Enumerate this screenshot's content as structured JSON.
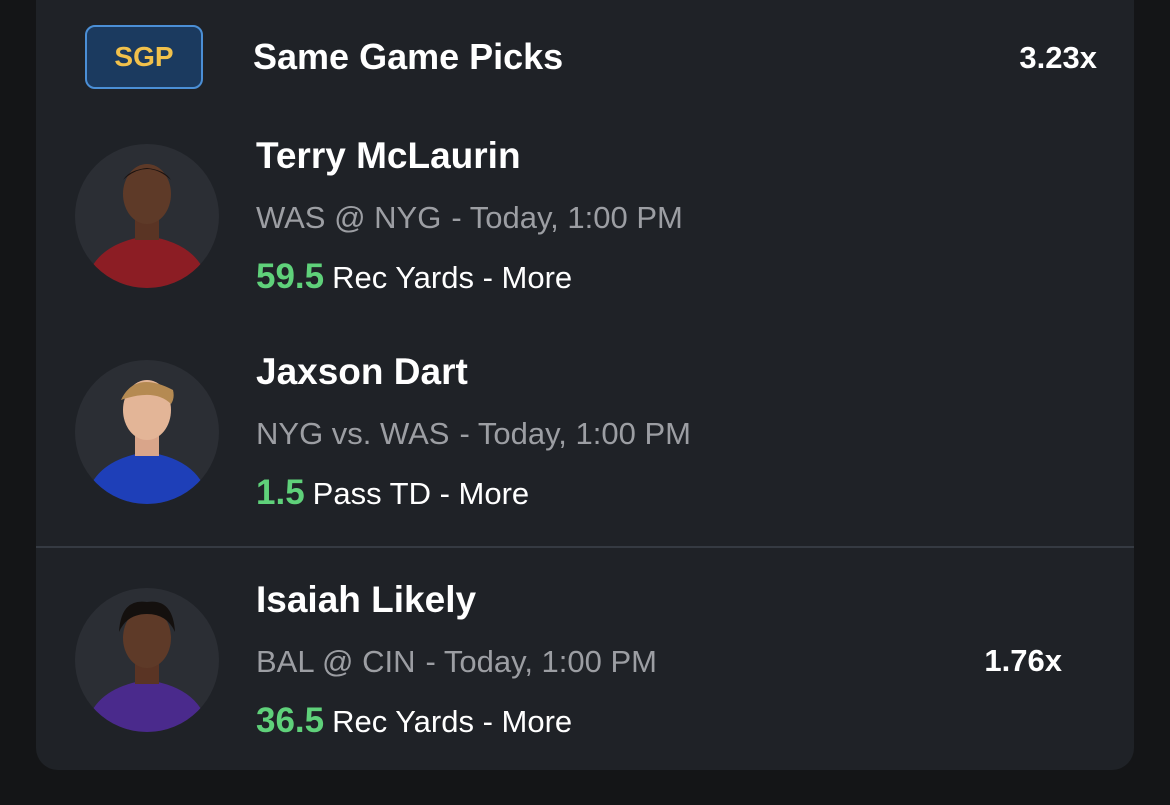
{
  "header": {
    "badge": "SGP",
    "title": "Same Game Picks",
    "multiplier": "3.23x"
  },
  "picks": [
    {
      "name": "Terry McLaurin",
      "matchup": "WAS @ NYG",
      "time": "- Today, 1:00 PM",
      "line": "59.5",
      "stat": "Rec Yards - More"
    },
    {
      "name": "Jaxson Dart",
      "matchup": "NYG vs. WAS",
      "time": "- Today, 1:00 PM",
      "line": "1.5",
      "stat": "Pass TD - More"
    },
    {
      "name": "Isaiah Likely",
      "matchup": "BAL @ CIN",
      "time": "- Today, 1:00 PM",
      "line": "36.5",
      "stat": "Rec Yards - More",
      "multiplier": "1.76x"
    }
  ]
}
